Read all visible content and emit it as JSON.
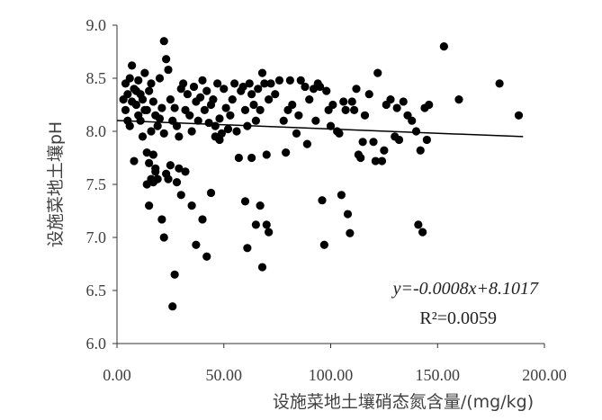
{
  "chart_data": {
    "type": "scatter",
    "title": "",
    "xlabel": "设施菜地土壤硝态氮含量/(mg/kg)",
    "ylabel": "设施菜地土壤pH",
    "xlim": [
      0,
      200
    ],
    "ylim": [
      6.0,
      9.0
    ],
    "x_ticks": [
      "0.00",
      "50.00",
      "100.00",
      "150.00",
      "200.00"
    ],
    "y_ticks": [
      "6.0",
      "6.5",
      "7.0",
      "7.5",
      "8.0",
      "8.5",
      "9.0"
    ],
    "grid": false,
    "trendline": {
      "slope": -0.0008,
      "intercept": 8.1017,
      "x_range": [
        0,
        190
      ]
    },
    "annotations": {
      "equation": "y=-0.0008x+8.1017",
      "r2": "R²=0.0059"
    },
    "points": [
      [
        3,
        8.3
      ],
      [
        4,
        8.2
      ],
      [
        5,
        8.35
      ],
      [
        6,
        8.5
      ],
      [
        7,
        8.62
      ],
      [
        8,
        8.4
      ],
      [
        9,
        8.25
      ],
      [
        10,
        8.48
      ],
      [
        11,
        8.1
      ],
      [
        12,
        8.3
      ],
      [
        13,
        8.55
      ],
      [
        14,
        8.2
      ],
      [
        15,
        8.38
      ],
      [
        16,
        8.45
      ],
      [
        17,
        8.28
      ],
      [
        18,
        8.15
      ],
      [
        19,
        8.05
      ],
      [
        20,
        8.5
      ],
      [
        21,
        8.22
      ],
      [
        22,
        8.85
      ],
      [
        23,
        8.68
      ],
      [
        24,
        8.58
      ],
      [
        6,
        8.05
      ],
      [
        8,
        7.72
      ],
      [
        10,
        8.15
      ],
      [
        12,
        7.95
      ],
      [
        14,
        7.8
      ],
      [
        15,
        7.7
      ],
      [
        17,
        7.78
      ],
      [
        18,
        7.62
      ],
      [
        19,
        7.55
      ],
      [
        20,
        8.12
      ],
      [
        22,
        7.98
      ],
      [
        4,
        8.45
      ],
      [
        5,
        8.1
      ],
      [
        7,
        8.28
      ],
      [
        9,
        8.38
      ],
      [
        11,
        8.35
      ],
      [
        13,
        8.2
      ],
      [
        16,
        8.0
      ],
      [
        14,
        7.5
      ],
      [
        15,
        7.3
      ],
      [
        16,
        7.55
      ],
      [
        17,
        7.52
      ],
      [
        18,
        7.65
      ],
      [
        21,
        7.17
      ],
      [
        22,
        7.0
      ],
      [
        23,
        7.6
      ],
      [
        24,
        7.55
      ],
      [
        25,
        7.68
      ],
      [
        26,
        6.35
      ],
      [
        27,
        6.65
      ],
      [
        28,
        7.52
      ],
      [
        25,
        8.3
      ],
      [
        26,
        8.1
      ],
      [
        27,
        8.22
      ],
      [
        28,
        8.05
      ],
      [
        29,
        7.95
      ],
      [
        30,
        8.4
      ],
      [
        31,
        8.45
      ],
      [
        32,
        8.2
      ],
      [
        33,
        8.35
      ],
      [
        34,
        8.15
      ],
      [
        35,
        8.0
      ],
      [
        36,
        8.42
      ],
      [
        37,
        8.28
      ],
      [
        38,
        8.1
      ],
      [
        39,
        8.32
      ],
      [
        40,
        8.48
      ],
      [
        41,
        8.2
      ],
      [
        42,
        8.38
      ],
      [
        43,
        8.08
      ],
      [
        44,
        8.25
      ],
      [
        45,
        8.3
      ],
      [
        46,
        8.05
      ],
      [
        47,
        8.45
      ],
      [
        48,
        8.12
      ],
      [
        49,
        7.98
      ],
      [
        50,
        8.4
      ],
      [
        51,
        8.22
      ],
      [
        29,
        7.65
      ],
      [
        30,
        7.4
      ],
      [
        32,
        7.62
      ],
      [
        35,
        7.3
      ],
      [
        37,
        6.93
      ],
      [
        40,
        7.17
      ],
      [
        42,
        6.82
      ],
      [
        44,
        7.42
      ],
      [
        46,
        7.95
      ],
      [
        48,
        7.92
      ],
      [
        52,
        8.02
      ],
      [
        53,
        8.15
      ],
      [
        54,
        8.3
      ],
      [
        55,
        8.45
      ],
      [
        56,
        8.0
      ],
      [
        57,
        7.75
      ],
      [
        58,
        8.38
      ],
      [
        59,
        8.42
      ],
      [
        60,
        8.2
      ],
      [
        61,
        8.05
      ],
      [
        62,
        8.45
      ],
      [
        63,
        8.35
      ],
      [
        64,
        8.25
      ],
      [
        65,
        8.1
      ],
      [
        66,
        8.4
      ],
      [
        67,
        8.2
      ],
      [
        68,
        8.55
      ],
      [
        69,
        8.45
      ],
      [
        70,
        7.78
      ],
      [
        71,
        8.3
      ],
      [
        60,
        7.34
      ],
      [
        61,
        6.9
      ],
      [
        63,
        7.75
      ],
      [
        65,
        7.12
      ],
      [
        67,
        7.3
      ],
      [
        68,
        6.72
      ],
      [
        70,
        7.12
      ],
      [
        71,
        7.05
      ],
      [
        72,
        8.45
      ],
      [
        74,
        8.35
      ],
      [
        76,
        8.48
      ],
      [
        78,
        8.1
      ],
      [
        79,
        7.8
      ],
      [
        80,
        8.2
      ],
      [
        81,
        8.48
      ],
      [
        82,
        8.25
      ],
      [
        84,
        7.98
      ],
      [
        85,
        8.15
      ],
      [
        86,
        8.48
      ],
      [
        88,
        8.42
      ],
      [
        89,
        7.88
      ],
      [
        90,
        8.3
      ],
      [
        92,
        8.4
      ],
      [
        93,
        8.1
      ],
      [
        94,
        8.45
      ],
      [
        95,
        8.42
      ],
      [
        96,
        7.35
      ],
      [
        97,
        6.93
      ],
      [
        98,
        8.38
      ],
      [
        99,
        8.2
      ],
      [
        100,
        8.05
      ],
      [
        101,
        8.25
      ],
      [
        103,
        8.0
      ],
      [
        104,
        7.98
      ],
      [
        105,
        7.4
      ],
      [
        106,
        8.28
      ],
      [
        107,
        8.2
      ],
      [
        108,
        7.22
      ],
      [
        109,
        7.04
      ],
      [
        110,
        8.28
      ],
      [
        111,
        8.2
      ],
      [
        112,
        8.4
      ],
      [
        113,
        7.78
      ],
      [
        114,
        7.75
      ],
      [
        115,
        7.9
      ],
      [
        116,
        8.15
      ],
      [
        118,
        8.35
      ],
      [
        120,
        7.9
      ],
      [
        121,
        7.72
      ],
      [
        122,
        8.55
      ],
      [
        124,
        7.72
      ],
      [
        125,
        7.82
      ],
      [
        126,
        8.25
      ],
      [
        128,
        8.3
      ],
      [
        130,
        7.95
      ],
      [
        131,
        8.22
      ],
      [
        132,
        7.92
      ],
      [
        134,
        8.28
      ],
      [
        136,
        8.15
      ],
      [
        138,
        8.1
      ],
      [
        140,
        8.0
      ],
      [
        141,
        7.12
      ],
      [
        142,
        7.82
      ],
      [
        143,
        7.05
      ],
      [
        144,
        8.22
      ],
      [
        145,
        7.92
      ],
      [
        146,
        8.25
      ],
      [
        153,
        8.8
      ],
      [
        160,
        8.3
      ],
      [
        179,
        8.45
      ],
      [
        188,
        8.15
      ]
    ]
  }
}
